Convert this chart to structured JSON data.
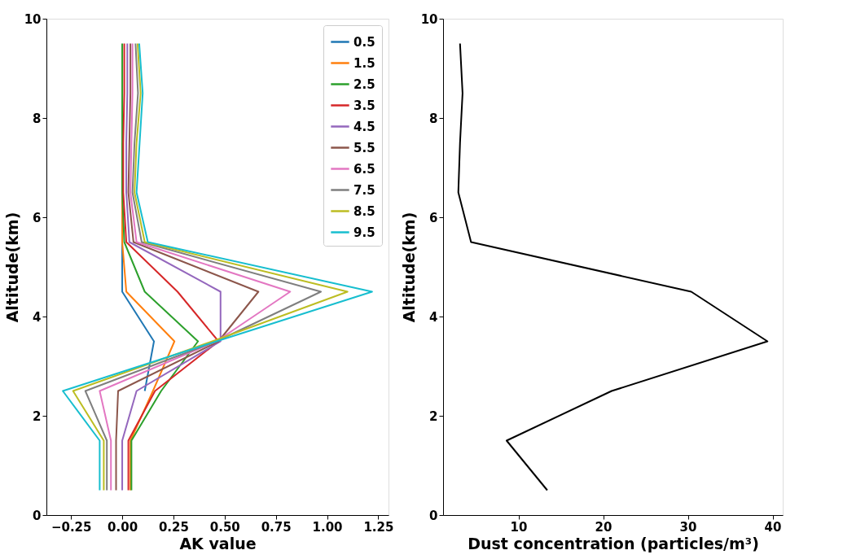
{
  "chart_data": [
    {
      "type": "line",
      "orientation": "horizontal",
      "xlabel": "AK value",
      "ylabel": "Altitude(km)",
      "x": [
        0.5,
        1.5,
        2.5,
        3.5,
        4.5,
        5.5,
        6.5,
        7.5,
        8.5,
        9.5
      ],
      "xlim": [
        -0.37,
        1.3
      ],
      "xticks": [
        {
          "value": -0.25,
          "label": "−0.25"
        },
        {
          "value": 0,
          "label": "0.00"
        },
        {
          "value": 0.25,
          "label": "0.25"
        },
        {
          "value": 0.5,
          "label": "0.50"
        },
        {
          "value": 0.75,
          "label": "0.75"
        },
        {
          "value": 1,
          "label": "1.00"
        },
        {
          "value": 1.25,
          "label": "1.25"
        }
      ],
      "ylim": [
        0,
        10
      ],
      "yticks": [
        0,
        2,
        4,
        6,
        8,
        10
      ],
      "grid": false,
      "legend": "top right",
      "marker": "none",
      "line_style": "solid",
      "series": [
        {
          "name": "0.5",
          "color": "#1f77b4",
          "values": [
            null,
            null,
            0.11,
            0.155,
            0.0,
            0.0,
            0.0,
            null,
            null,
            null
          ]
        },
        {
          "name": "1.5",
          "color": "#ff7f0e",
          "values": [
            0.04,
            0.04,
            0.15,
            0.255,
            0.02,
            0.0,
            0.0,
            0.0,
            null,
            null
          ]
        },
        {
          "name": "2.5",
          "color": "#2ca02c",
          "values": [
            0.045,
            0.045,
            0.19,
            0.37,
            0.11,
            0.01,
            0.0,
            0.0,
            0.0,
            0.0
          ]
        },
        {
          "name": "3.5",
          "color": "#d62728",
          "values": [
            0.03,
            0.03,
            0.16,
            0.47,
            0.27,
            0.02,
            0.005,
            0.005,
            0.01,
            0.01
          ]
        },
        {
          "name": "4.5",
          "color": "#9467bd",
          "values": [
            0.0,
            0.0,
            0.07,
            0.48,
            0.48,
            0.035,
            0.02,
            0.02,
            0.025,
            0.025
          ]
        },
        {
          "name": "5.5",
          "color": "#8c564b",
          "values": [
            -0.03,
            -0.03,
            -0.02,
            0.47,
            0.665,
            0.055,
            0.03,
            0.035,
            0.04,
            0.04
          ]
        },
        {
          "name": "6.5",
          "color": "#e377c2",
          "values": [
            -0.055,
            -0.055,
            -0.11,
            0.46,
            0.82,
            0.07,
            0.04,
            0.045,
            0.05,
            0.05
          ]
        },
        {
          "name": "7.5",
          "color": "#7f7f7f",
          "values": [
            -0.075,
            -0.075,
            -0.18,
            0.46,
            0.97,
            0.095,
            0.05,
            0.06,
            0.077,
            0.065
          ]
        },
        {
          "name": "8.5",
          "color": "#bcbd22",
          "values": [
            -0.09,
            -0.09,
            -0.24,
            0.44,
            1.1,
            0.11,
            0.06,
            0.07,
            0.09,
            0.075
          ]
        },
        {
          "name": "9.5",
          "color": "#17becf",
          "values": [
            -0.11,
            -0.11,
            -0.29,
            0.46,
            1.22,
            0.125,
            0.07,
            0.085,
            0.1,
            0.083
          ]
        }
      ]
    },
    {
      "type": "line",
      "orientation": "horizontal",
      "xlabel": "Dust concentration (particles/m³)",
      "ylabel": "Altitude(km)",
      "x": [
        0.5,
        1.5,
        2.5,
        3.5,
        4.5,
        5.5,
        6.5,
        7.5,
        8.5,
        9.5
      ],
      "xlim": [
        1.1,
        41.2
      ],
      "xticks": [
        10,
        20,
        30,
        40
      ],
      "ylim": [
        0,
        10
      ],
      "yticks": [
        0,
        2,
        4,
        6,
        8,
        10
      ],
      "grid": false,
      "legend": false,
      "marker": "none",
      "line_style": "solid",
      "series": [
        {
          "color": "#000000",
          "values": [
            13.4,
            8.6,
            21,
            39.4,
            30.4,
            4.4,
            2.9,
            3.1,
            3.4,
            3.1
          ]
        }
      ]
    }
  ]
}
